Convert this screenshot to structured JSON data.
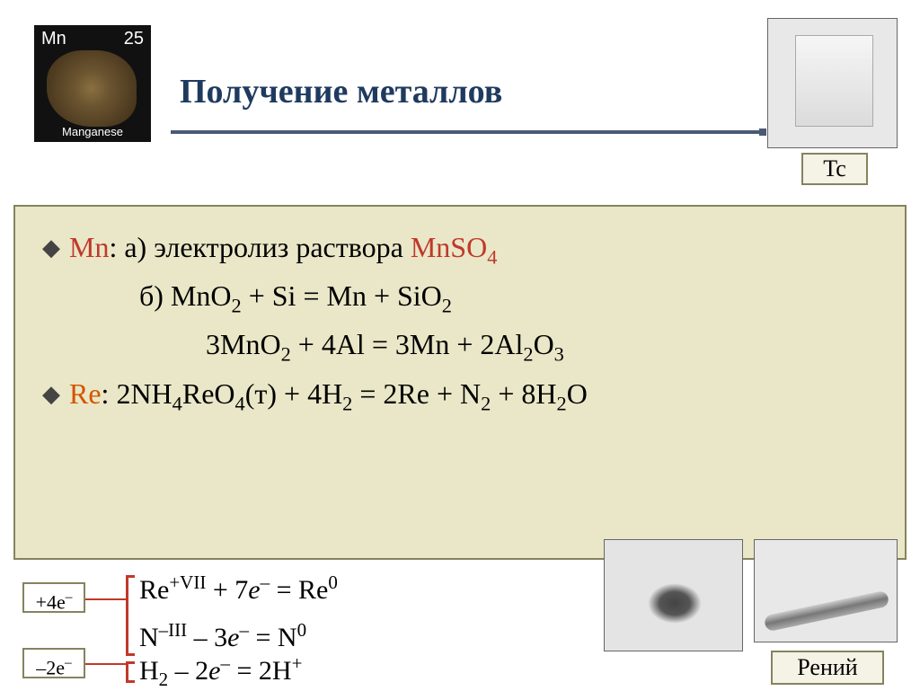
{
  "title": {
    "text": "Получение металлов",
    "color": "#1f3a5f",
    "fontsize": 38
  },
  "element_tile": {
    "symbol": "Mn",
    "number": "25",
    "name": "Manganese"
  },
  "badges": {
    "tc": "Tc",
    "re": "Рений"
  },
  "electron_boxes": {
    "top": "+4e",
    "bottom": "–2e"
  },
  "content": {
    "mn_label": "Mn",
    "mn_a_prefix": ": а) электролиз раствора ",
    "mn_a_formula": "MnSO",
    "mn_a_sub": "4",
    "mn_b": "б) MnO",
    "mn_b_rest": " + Si = Mn + SiO",
    "mn_c": "3MnO",
    "mn_c_rest": " + 4Al = 3Mn + 2Al",
    "mn_c_o": "O",
    "re_label": "Re",
    "re_line_1": ": 2NH",
    "re_line_2": "ReO",
    "re_line_3": "(т) + 4H",
    "re_line_4": " = 2Re + N",
    "re_line_5": " + 8H",
    "re_line_6": "O"
  },
  "redox": {
    "re_half": "Re",
    "re_sup": "+VII",
    "re_rest": " + 7",
    "e": "e",
    "re_end": " = Re",
    "zero": "0",
    "n_half": "N",
    "n_sup": "–III",
    "n_rest": " – 3",
    "n_end": " = N",
    "h_half": "H",
    "h_rest": " – 2",
    "h_end": " = 2H",
    "plus": "+",
    "minus": "–"
  },
  "colors": {
    "title": "#1f3a5f",
    "mn": "#c0392b",
    "re": "#d35400",
    "box_bg": "#e9e7c7",
    "box_border": "#85835f",
    "bracket": "#c0392b"
  }
}
